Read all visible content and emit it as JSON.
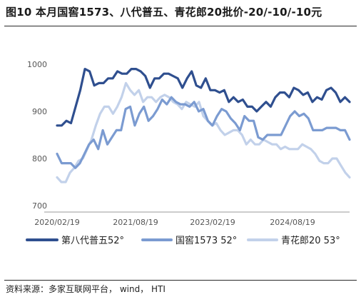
{
  "title": "图10 本月国窖1573、八代普五、青花郎20批价-20/-10/-10元",
  "source": "资料来源：多家互联网平台， wind， HTI",
  "chart_data": {
    "type": "line",
    "x_ticks": [
      "2020/02/19",
      "2021/08/19",
      "2023/02/19",
      "2024/08/19"
    ],
    "ylim": [
      700,
      1000
    ],
    "y_ticks": [
      700,
      800,
      900,
      1000
    ],
    "grid": false,
    "legend_position": "bottom",
    "series": [
      {
        "name": "第八代普五52°",
        "color": "#2f4f8f",
        "width": 3.2,
        "values": [
          870,
          870,
          880,
          875,
          910,
          945,
          990,
          985,
          955,
          960,
          960,
          970,
          970,
          985,
          980,
          980,
          990,
          990,
          985,
          975,
          950,
          970,
          970,
          980,
          980,
          975,
          970,
          950,
          970,
          985,
          955,
          950,
          970,
          945,
          945,
          940,
          945,
          920,
          930,
          920,
          925,
          910,
          910,
          900,
          910,
          920,
          910,
          930,
          940,
          940,
          930,
          950,
          945,
          935,
          940,
          920,
          930,
          925,
          945,
          950,
          940,
          920,
          930,
          920
        ]
      },
      {
        "name": "国窖1573 52°",
        "color": "#7b9bd1",
        "width": 3.2,
        "values": [
          810,
          790,
          790,
          790,
          780,
          790,
          810,
          830,
          840,
          820,
          860,
          830,
          845,
          860,
          860,
          905,
          910,
          870,
          895,
          910,
          880,
          890,
          905,
          925,
          915,
          930,
          920,
          915,
          915,
          910,
          920,
          900,
          905,
          880,
          870,
          890,
          905,
          900,
          885,
          875,
          860,
          890,
          880,
          880,
          845,
          840,
          850,
          850,
          850,
          850,
          870,
          890,
          900,
          890,
          895,
          885,
          860,
          860,
          860,
          865,
          865,
          865,
          860,
          860,
          840
        ]
      },
      {
        "name": "青花郎20 53°",
        "color": "#c2d1ea",
        "width": 3.2,
        "values": [
          760,
          750,
          750,
          770,
          780,
          795,
          800,
          820,
          840,
          870,
          895,
          910,
          910,
          895,
          910,
          930,
          960,
          945,
          935,
          945,
          920,
          930,
          930,
          920,
          930,
          935,
          930,
          920,
          915,
          905,
          920,
          915,
          910,
          920,
          890,
          880,
          870,
          875,
          860,
          850,
          855,
          860,
          860,
          850,
          830,
          840,
          830,
          830,
          840,
          835,
          830,
          830,
          820,
          825,
          820,
          820,
          820,
          830,
          825,
          820,
          810,
          795,
          790,
          790,
          800,
          800,
          785,
          770,
          760
        ]
      }
    ]
  }
}
